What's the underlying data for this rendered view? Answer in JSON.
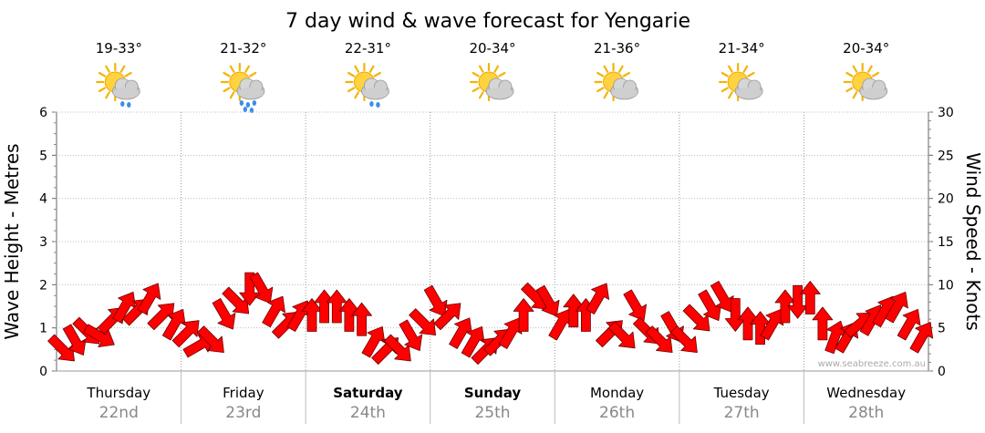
{
  "chart_data": {
    "type": "line",
    "title": "7 day wind & wave forecast for Yengarie",
    "ylabel_left": "Wave Height - Metres",
    "ylabel_right": "Wind Speed - Knots",
    "ylim_left": [
      0,
      6
    ],
    "ylim_right": [
      0,
      30
    ],
    "yticks_left": [
      "0",
      "1",
      "2",
      "3",
      "4",
      "5",
      "6"
    ],
    "yticks_right": [
      "0",
      "5",
      "10",
      "15",
      "20",
      "25",
      "30"
    ],
    "grid": true,
    "credit": "www.seabreeze.com.au",
    "days": [
      {
        "name": "Thursday",
        "date": "22nd",
        "temp": "19-33°",
        "icon": "sun-cloud-showers-icon",
        "bold": false
      },
      {
        "name": "Friday",
        "date": "23rd",
        "temp": "21-32°",
        "icon": "sun-cloud-rain-icon",
        "bold": false
      },
      {
        "name": "Saturday",
        "date": "24th",
        "temp": "22-31°",
        "icon": "sun-cloud-showers-icon",
        "bold": true
      },
      {
        "name": "Sunday",
        "date": "25th",
        "temp": "20-34°",
        "icon": "sun-cloud-icon",
        "bold": true
      },
      {
        "name": "Monday",
        "date": "26th",
        "temp": "21-36°",
        "icon": "sun-cloud-icon",
        "bold": false
      },
      {
        "name": "Tuesday",
        "date": "27th",
        "temp": "21-34°",
        "icon": "sun-cloud-icon",
        "bold": false
      },
      {
        "name": "Wednesday",
        "date": "28th",
        "temp": "20-34°",
        "icon": "sun-cloud-icon",
        "bold": false
      }
    ],
    "wind_series": {
      "name": "Wind Speed",
      "color": "#ff0000",
      "note": "values in knots, one per 3 hours; direction in degrees the arrow points",
      "speed": [
        2.5,
        3.5,
        4.5,
        4,
        6,
        7.5,
        7,
        8.5,
        6.5,
        5.5,
        4.5,
        3,
        3.5,
        6.5,
        8,
        9.5,
        9.5,
        7,
        5.5,
        6.5,
        6.5,
        7.5,
        7.5,
        6.5,
        6,
        3.5,
        2.5,
        2.5,
        4,
        5.5,
        8,
        6.5,
        4.5,
        3.5,
        2.5,
        3.5,
        4.5,
        6.5,
        8.5,
        8,
        5.5,
        7,
        6.5,
        8.5,
        4.5,
        4,
        7.5,
        4.5,
        3.5,
        5,
        3.5,
        6,
        7.5,
        8.5,
        6.5,
        5.5,
        5,
        5.5,
        7.5,
        8,
        8.5,
        5.5,
        4,
        4,
        5.5,
        6,
        7,
        7.5,
        5.5,
        4
      ],
      "direction": [
        45,
        60,
        45,
        30,
        315,
        300,
        315,
        300,
        315,
        300,
        315,
        330,
        45,
        60,
        45,
        90,
        60,
        300,
        315,
        300,
        270,
        270,
        270,
        270,
        270,
        300,
        315,
        45,
        60,
        45,
        60,
        315,
        300,
        300,
        315,
        315,
        300,
        270,
        45,
        60,
        300,
        270,
        270,
        300,
        315,
        45,
        60,
        45,
        45,
        60,
        45,
        45,
        60,
        60,
        90,
        270,
        270,
        300,
        270,
        90,
        270,
        270,
        290,
        300,
        320,
        300,
        300,
        300,
        300,
        300
      ]
    }
  }
}
